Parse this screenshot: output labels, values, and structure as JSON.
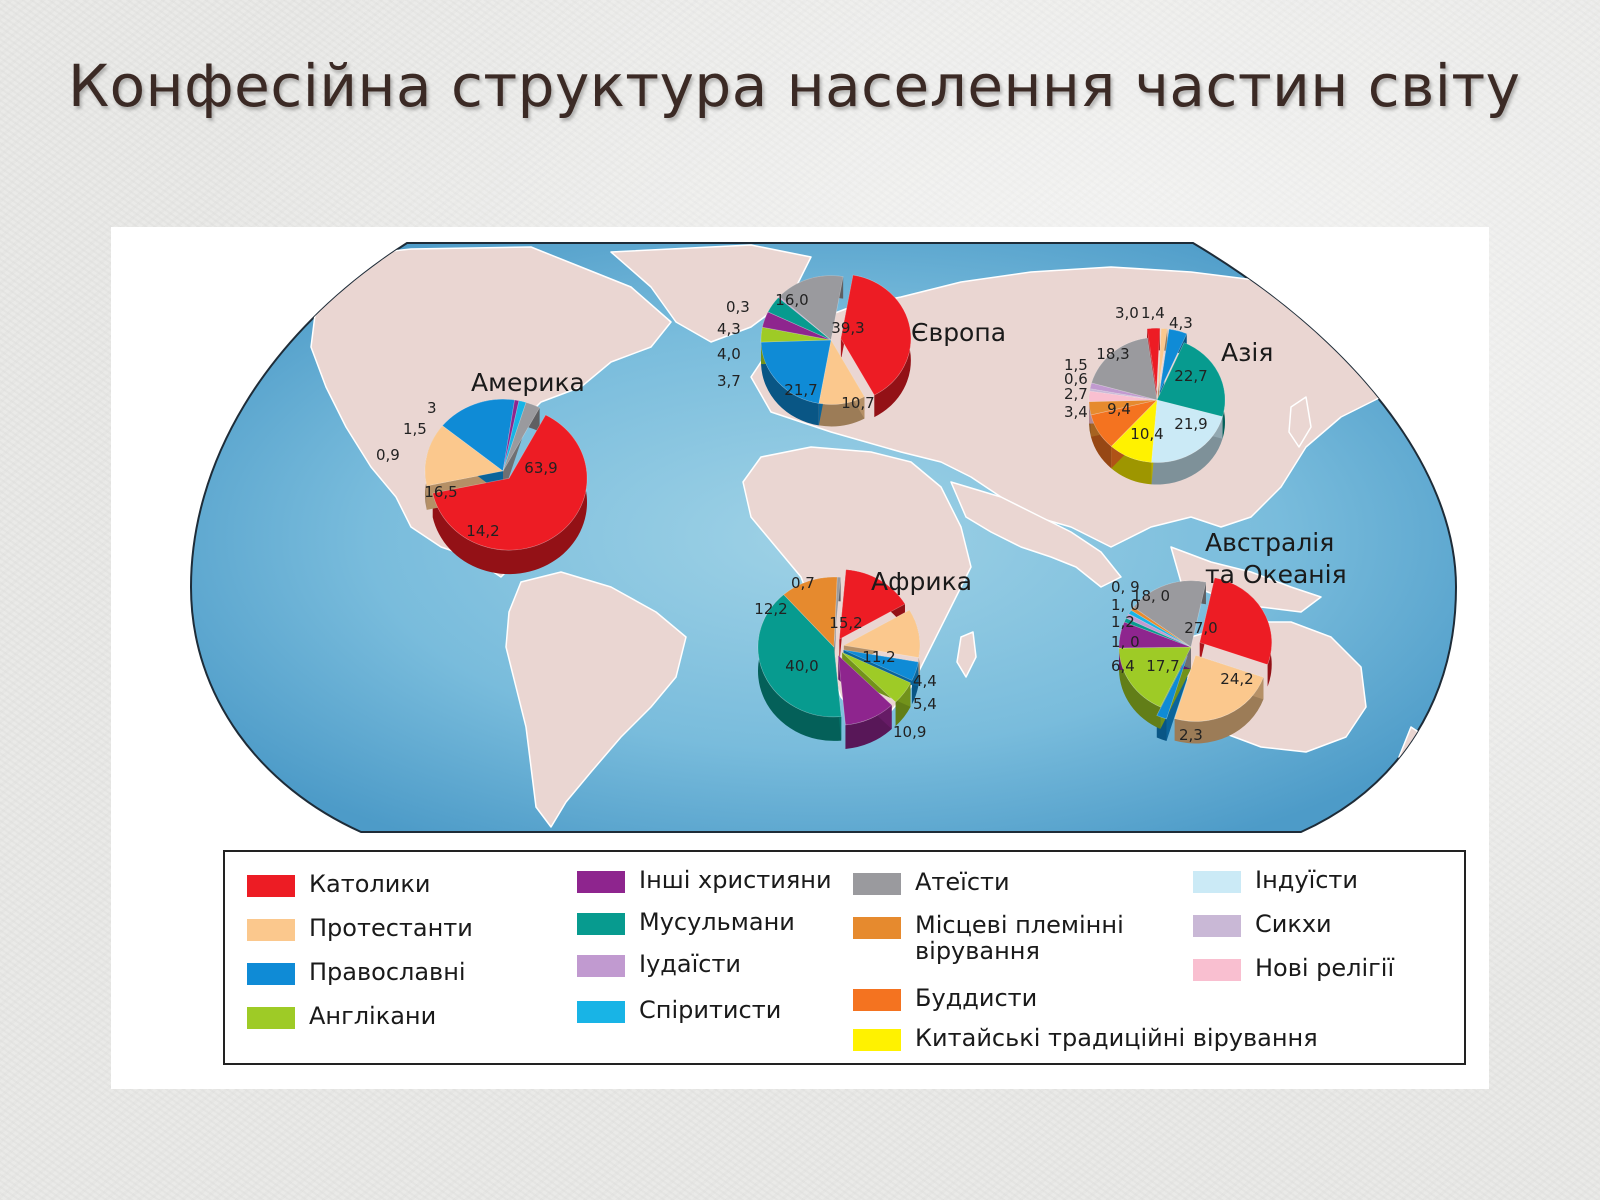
{
  "title": "Конфесійна структура населення частин світу",
  "legend": [
    {
      "key": "catholics",
      "label": "Католики",
      "color": "#ed1c24"
    },
    {
      "key": "protestants",
      "label": "Протестанти",
      "color": "#fbc88d"
    },
    {
      "key": "orthodox",
      "label": "Православні",
      "color": "#0f8bd6"
    },
    {
      "key": "anglicans",
      "label": "Англікани",
      "color": "#9ecb26"
    },
    {
      "key": "other_christians",
      "label": "Інші християни",
      "color": "#8e258e"
    },
    {
      "key": "muslims",
      "label": "Мусульмани",
      "color": "#079b8f"
    },
    {
      "key": "judaists",
      "label": "Іудаїсти",
      "color": "#c19ad0"
    },
    {
      "key": "spiritists",
      "label": "Спіритисти",
      "color": "#18b4e6"
    },
    {
      "key": "atheists",
      "label": "Атеїсти",
      "color": "#9a9a9e"
    },
    {
      "key": "tribal",
      "label": "Місцеві племінні\nвірування",
      "color": "#e68a2e"
    },
    {
      "key": "buddhists",
      "label": "Буддисти",
      "color": "#f47320"
    },
    {
      "key": "chinese",
      "label": "Китайські традиційні вірування",
      "color": "#fff200"
    },
    {
      "key": "hindus",
      "label": "Індуїсти",
      "color": "#cbeaf6"
    },
    {
      "key": "sikhs",
      "label": "Сикхи",
      "color": "#c9b8d6"
    },
    {
      "key": "new_religions",
      "label": "Нові релігії",
      "color": "#f9bfd0"
    }
  ],
  "chart_data": [
    {
      "type": "pie",
      "title": "Америка",
      "slices": [
        {
          "key": "catholics",
          "value": 63.9,
          "label": "63,9"
        },
        {
          "key": "protestants",
          "value": 14.2,
          "label": "14,2"
        },
        {
          "key": "orthodox",
          "value": 16.5,
          "label": "16,5"
        },
        {
          "key": "other_christians",
          "value": 0.9,
          "label": "0,9"
        },
        {
          "key": "spiritists",
          "value": 1.5,
          "label": "1,5"
        },
        {
          "key": "atheists",
          "value": 3,
          "label": "3"
        }
      ]
    },
    {
      "type": "pie",
      "title": "Європа",
      "slices": [
        {
          "key": "catholics",
          "value": 39.3,
          "label": "39,3"
        },
        {
          "key": "protestants",
          "value": 10.7,
          "label": "10,7"
        },
        {
          "key": "orthodox",
          "value": 21.7,
          "label": "21,7"
        },
        {
          "key": "anglicans",
          "value": 3.7,
          "label": "3,7"
        },
        {
          "key": "other_christians",
          "value": 4.0,
          "label": "4,0"
        },
        {
          "key": "muslims",
          "value": 4.3,
          "label": "4,3"
        },
        {
          "key": "judaists",
          "value": 0.3,
          "label": "0,3"
        },
        {
          "key": "atheists",
          "value": 16.0,
          "label": "16,0"
        }
      ]
    },
    {
      "type": "pie",
      "title": "Азія",
      "slices": [
        {
          "key": "catholics",
          "value": 3.0,
          "label": "3,0"
        },
        {
          "key": "protestants",
          "value": 1.4,
          "label": "1,4"
        },
        {
          "key": "orthodox",
          "value": 4.3,
          "label": "4,3"
        },
        {
          "key": "muslims",
          "value": 22.7,
          "label": "22,7"
        },
        {
          "key": "hindus",
          "value": 21.9,
          "label": "21,9"
        },
        {
          "key": "chinese",
          "value": 10.4,
          "label": "10,4"
        },
        {
          "key": "buddhists",
          "value": 9.4,
          "label": "9,4"
        },
        {
          "key": "tribal",
          "value": 3.4,
          "label": "3,4"
        },
        {
          "key": "new_religions",
          "value": 2.7,
          "label": "2,7"
        },
        {
          "key": "sikhs",
          "value": 0.6,
          "label": "0,6"
        },
        {
          "key": "judaists",
          "value": 1.5,
          "label": "1,5"
        },
        {
          "key": "atheists",
          "value": 18.3,
          "label": "18,3"
        }
      ]
    },
    {
      "type": "pie",
      "title": "Африка",
      "slices": [
        {
          "key": "catholics",
          "value": 15.2,
          "label": "15,2"
        },
        {
          "key": "protestants",
          "value": 11.2,
          "label": "11,2"
        },
        {
          "key": "orthodox",
          "value": 4.4,
          "label": "4,4"
        },
        {
          "key": "anglicans",
          "value": 5.4,
          "label": "5,4"
        },
        {
          "key": "other_christians",
          "value": 10.9,
          "label": "10,9"
        },
        {
          "key": "muslims",
          "value": 40.0,
          "label": "40,0"
        },
        {
          "key": "tribal",
          "value": 12.2,
          "label": "12,2"
        },
        {
          "key": "atheists",
          "value": 0.7,
          "label": "0,7"
        }
      ]
    },
    {
      "type": "pie",
      "title": "Австралія\nта Океанія",
      "slices": [
        {
          "key": "catholics",
          "value": 27.0,
          "label": "27,0"
        },
        {
          "key": "protestants",
          "value": 24.2,
          "label": "24,2"
        },
        {
          "key": "orthodox",
          "value": 2.3,
          "label": "2,3"
        },
        {
          "key": "anglicans",
          "value": 17.7,
          "label": "17,7"
        },
        {
          "key": "other_christians",
          "value": 6.4,
          "label": "6,4"
        },
        {
          "key": "muslims",
          "value": 1.0,
          "label": "1, 0"
        },
        {
          "key": "judaists",
          "value": 1.2,
          "label": "1,2"
        },
        {
          "key": "spiritists",
          "value": 1.0,
          "label": "1, 0"
        },
        {
          "key": "tribal",
          "value": 0.9,
          "label": "0, 9"
        },
        {
          "key": "atheists",
          "value": 18.0,
          "label": "18, 0"
        }
      ]
    }
  ]
}
